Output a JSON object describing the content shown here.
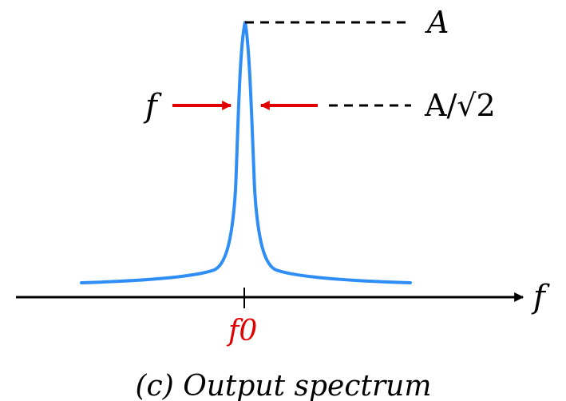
{
  "diagram": {
    "caption": "(c) Output spectrum",
    "axis_label": "f",
    "center_label": "f0",
    "peak_label": "A",
    "half_power_label": "A/√2",
    "bandwidth_label": "f"
  },
  "colors": {
    "curve": "#2f8ef5",
    "arrows": "#e10000",
    "center_label": "#e10000",
    "axis": "#000000",
    "dashes": "#000000"
  }
}
